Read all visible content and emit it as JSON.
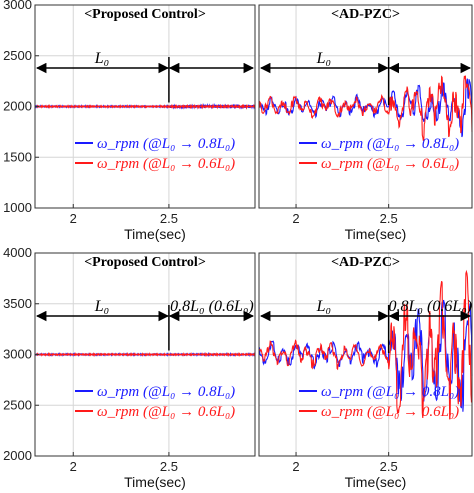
{
  "chart_data": [
    {
      "type": "line",
      "title": "<Proposed Control>",
      "xlabel": "Time(sec)",
      "xlim": [
        1.8,
        2.95
      ],
      "ylim": [
        1000,
        3000
      ],
      "yticks": [
        1000,
        1500,
        2000,
        2500,
        3000
      ],
      "xticks": [
        2,
        2.5
      ],
      "grid": true,
      "change_time": 2.5,
      "segment_labels": [
        "L₀",
        ""
      ],
      "legend": {
        "placement": "lower-center",
        "entries": [
          {
            "text": "ω_rpm (@L₀ → 0.8L₀)",
            "color": "#1a1aff"
          },
          {
            "text": "ω_rpm (@L₀ → 0.6L₀)",
            "color": "#ff1a1a"
          }
        ]
      },
      "series": [
        {
          "color": "#1a1aff",
          "baseline": 2000,
          "ripple_before": 6,
          "ripple_after": 14
        },
        {
          "color": "#ff1a1a",
          "baseline": 2000,
          "ripple_before": 6,
          "ripple_after": 8
        }
      ]
    },
    {
      "type": "line",
      "title": "<AD-PZC>",
      "xlabel": "Time(sec)",
      "xlim": [
        1.8,
        2.95
      ],
      "ylim": [
        1000,
        3000
      ],
      "yticks": [],
      "xticks": [
        2,
        2.5
      ],
      "grid": true,
      "change_time": 2.5,
      "segment_labels": [
        "L₀",
        ""
      ],
      "legend": {
        "placement": "lower-center",
        "entries": [
          {
            "text": "ω_rpm (@L₀ → 0.8L₀)",
            "color": "#1a1aff"
          },
          {
            "text": "ω_rpm (@L₀ → 0.6L₀)",
            "color": "#ff1a1a"
          }
        ]
      },
      "series": [
        {
          "color": "#1a1aff",
          "baseline": 2000,
          "ripple_before": 90,
          "ripple_after": 170
        },
        {
          "color": "#ff1a1a",
          "baseline": 2000,
          "ripple_before": 90,
          "ripple_after": 210
        }
      ]
    },
    {
      "type": "line",
      "title": "<Proposed Control>",
      "xlabel": "Time(sec)",
      "xlim": [
        1.8,
        2.95
      ],
      "ylim": [
        2000,
        4000
      ],
      "yticks": [
        2000,
        2500,
        3000,
        3500,
        4000
      ],
      "xticks": [
        2,
        2.5
      ],
      "grid": true,
      "change_time": 2.5,
      "segment_labels": [
        "L₀",
        "0.8L₀ (0.6L₀)"
      ],
      "legend": {
        "placement": "lower-center",
        "entries": [
          {
            "text": "ω_rpm (@L₀ → 0.8L₀)",
            "color": "#1a1aff"
          },
          {
            "text": "ω_rpm (@L₀ → 0.6L₀)",
            "color": "#ff1a1a"
          }
        ]
      },
      "series": [
        {
          "color": "#1a1aff",
          "baseline": 3000,
          "ripple_before": 6,
          "ripple_after": 6
        },
        {
          "color": "#ff1a1a",
          "baseline": 3000,
          "ripple_before": 6,
          "ripple_after": 6
        }
      ]
    },
    {
      "type": "line",
      "title": "<AD-PZC>",
      "xlabel": "Time(sec)",
      "xlim": [
        1.8,
        2.95
      ],
      "ylim": [
        2000,
        4000
      ],
      "yticks": [],
      "xticks": [
        2,
        2.5
      ],
      "grid": true,
      "change_time": 2.5,
      "segment_labels": [
        "L₀",
        "0.8L₀ (0.6L₀)"
      ],
      "legend": {
        "placement": "lower-center",
        "entries": [
          {
            "text": "ω_rpm (@L₀ → 0.8L₀)",
            "color": "#1a1aff"
          },
          {
            "text": "ω_rpm (@L₀ → 0.6L₀)",
            "color": "#ff1a1a"
          }
        ]
      },
      "series": [
        {
          "color": "#1a1aff",
          "baseline": 3000,
          "ripple_before": 110,
          "ripple_after": 380
        },
        {
          "color": "#ff1a1a",
          "baseline": 3000,
          "ripple_before": 110,
          "ripple_after": 460
        }
      ]
    }
  ]
}
